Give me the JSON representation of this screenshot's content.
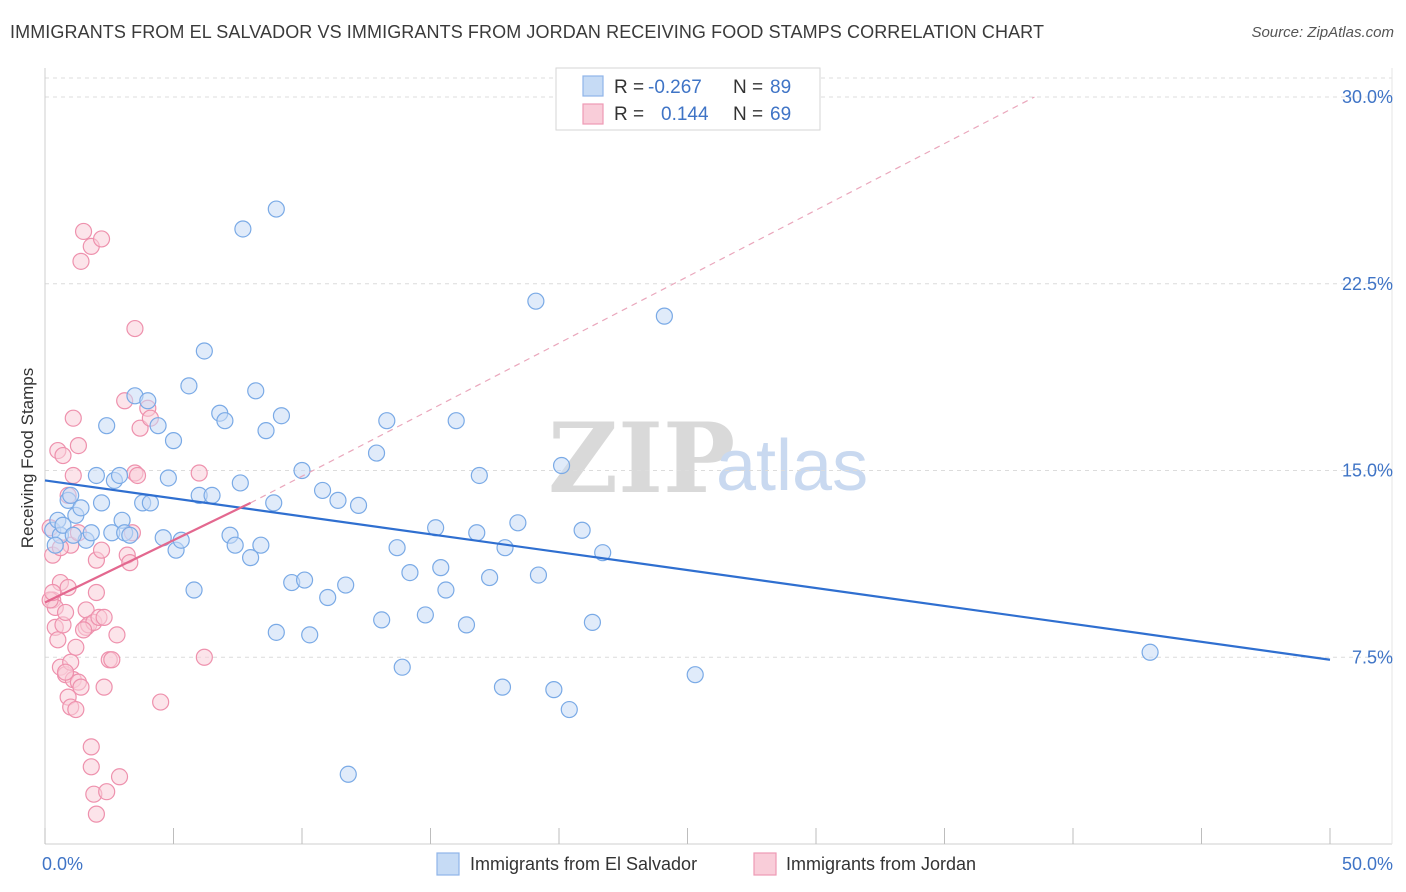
{
  "title": "IMMIGRANTS FROM EL SALVADOR VS IMMIGRANTS FROM JORDAN RECEIVING FOOD STAMPS CORRELATION CHART",
  "source": "Source: ZipAtlas.com",
  "watermark": {
    "zip": "ZIP",
    "atlas": "atlas"
  },
  "legend_top": [
    {
      "r_label": "R = ",
      "r_value": "-0.267",
      "n_label": "N = ",
      "n_value": "89",
      "color": "#a8c8f0"
    },
    {
      "r_label": "R = ",
      "r_value": "0.144",
      "n_label": "N = ",
      "n_value": "69",
      "color": "#f5b8cb"
    }
  ],
  "chart_data": {
    "type": "scatter",
    "title": "IMMIGRANTS FROM EL SALVADOR VS IMMIGRANTS FROM JORDAN RECEIVING FOOD STAMPS CORRELATION CHART",
    "xlabel": "",
    "ylabel": "Receiving Food Stamps",
    "xlim": [
      0,
      50
    ],
    "ylim": [
      0,
      30.5
    ],
    "x_tick_labels": [
      "0.0%",
      "50.0%"
    ],
    "y_ticks": [
      7.5,
      15.0,
      22.5,
      30.0
    ],
    "y_tick_labels": [
      "7.5%",
      "15.0%",
      "22.5%",
      "30.0%"
    ],
    "grid": true,
    "legend": "bottom-center",
    "series": [
      {
        "name": "Immigrants from El Salvador",
        "color": "#7aaae6",
        "fill": "#c6dbf5",
        "trend": {
          "x": [
            0,
            50
          ],
          "y": [
            14.6,
            7.4
          ]
        },
        "points": [
          [
            0.3,
            12.6
          ],
          [
            0.5,
            13.0
          ],
          [
            0.6,
            12.4
          ],
          [
            0.7,
            12.8
          ],
          [
            0.9,
            13.8
          ],
          [
            1.0,
            14.0
          ],
          [
            1.2,
            13.2
          ],
          [
            1.4,
            13.5
          ],
          [
            1.6,
            12.2
          ],
          [
            1.8,
            12.5
          ],
          [
            2.0,
            14.8
          ],
          [
            2.2,
            13.7
          ],
          [
            2.4,
            16.8
          ],
          [
            2.6,
            12.5
          ],
          [
            2.7,
            14.6
          ],
          [
            3.0,
            13.0
          ],
          [
            3.1,
            12.5
          ],
          [
            3.3,
            12.4
          ],
          [
            3.5,
            18.0
          ],
          [
            3.8,
            13.7
          ],
          [
            4.0,
            17.8
          ],
          [
            4.1,
            13.7
          ],
          [
            4.4,
            16.8
          ],
          [
            4.6,
            12.3
          ],
          [
            4.8,
            14.7
          ],
          [
            5.0,
            16.2
          ],
          [
            5.1,
            11.8
          ],
          [
            5.3,
            12.2
          ],
          [
            5.6,
            18.4
          ],
          [
            5.8,
            10.2
          ],
          [
            6.0,
            14.0
          ],
          [
            6.2,
            19.8
          ],
          [
            6.5,
            14.0
          ],
          [
            6.8,
            17.3
          ],
          [
            7.0,
            17.0
          ],
          [
            7.2,
            12.4
          ],
          [
            7.4,
            12.0
          ],
          [
            7.6,
            14.5
          ],
          [
            8.0,
            11.5
          ],
          [
            8.2,
            18.2
          ],
          [
            8.4,
            12.0
          ],
          [
            8.6,
            16.6
          ],
          [
            8.9,
            13.7
          ],
          [
            9.0,
            8.5
          ],
          [
            9.2,
            17.2
          ],
          [
            9.6,
            10.5
          ],
          [
            10.0,
            15.0
          ],
          [
            10.1,
            10.6
          ],
          [
            10.3,
            8.4
          ],
          [
            10.8,
            14.2
          ],
          [
            11.0,
            9.9
          ],
          [
            11.4,
            13.8
          ],
          [
            11.7,
            10.4
          ],
          [
            12.2,
            13.6
          ],
          [
            12.9,
            15.7
          ],
          [
            13.1,
            9.0
          ],
          [
            13.3,
            17.0
          ],
          [
            13.7,
            11.9
          ],
          [
            13.9,
            7.1
          ],
          [
            14.2,
            10.9
          ],
          [
            14.8,
            9.2
          ],
          [
            15.2,
            12.7
          ],
          [
            15.4,
            11.1
          ],
          [
            15.6,
            10.2
          ],
          [
            16.0,
            17.0
          ],
          [
            16.4,
            8.8
          ],
          [
            16.8,
            12.5
          ],
          [
            16.9,
            14.8
          ],
          [
            17.3,
            10.7
          ],
          [
            17.8,
            6.3
          ],
          [
            17.9,
            11.9
          ],
          [
            18.4,
            12.9
          ],
          [
            19.1,
            21.8
          ],
          [
            19.2,
            10.8
          ],
          [
            19.8,
            6.2
          ],
          [
            20.1,
            15.2
          ],
          [
            20.4,
            5.4
          ],
          [
            20.9,
            12.6
          ],
          [
            21.3,
            8.9
          ],
          [
            21.7,
            11.7
          ],
          [
            9.0,
            25.5
          ],
          [
            7.7,
            24.7
          ],
          [
            24.1,
            21.2
          ],
          [
            25.3,
            6.8
          ],
          [
            43.0,
            7.7
          ],
          [
            11.8,
            2.8
          ],
          [
            0.4,
            12.0
          ],
          [
            1.1,
            12.4
          ],
          [
            2.9,
            14.8
          ]
        ]
      },
      {
        "name": "Immigrants from Jordan",
        "color": "#ee91ad",
        "fill": "#f9cdd9",
        "trend": {
          "x": [
            0,
            8
          ],
          "y": [
            9.7,
            13.7
          ]
        },
        "trend_extended": {
          "x": [
            8,
            38.5
          ],
          "y": [
            13.7,
            30.0
          ]
        },
        "points": [
          [
            0.2,
            12.7
          ],
          [
            0.3,
            11.6
          ],
          [
            0.3,
            9.8
          ],
          [
            0.4,
            9.5
          ],
          [
            0.4,
            8.7
          ],
          [
            0.5,
            15.8
          ],
          [
            0.5,
            8.2
          ],
          [
            0.6,
            7.1
          ],
          [
            0.6,
            10.5
          ],
          [
            0.7,
            15.6
          ],
          [
            0.7,
            8.8
          ],
          [
            0.8,
            9.3
          ],
          [
            0.8,
            6.8
          ],
          [
            0.9,
            10.3
          ],
          [
            0.9,
            5.9
          ],
          [
            1.0,
            12.0
          ],
          [
            1.0,
            7.3
          ],
          [
            1.0,
            5.5
          ],
          [
            1.1,
            17.1
          ],
          [
            1.1,
            14.8
          ],
          [
            1.1,
            6.6
          ],
          [
            1.2,
            5.4
          ],
          [
            1.3,
            16.0
          ],
          [
            1.3,
            12.5
          ],
          [
            1.3,
            6.5
          ],
          [
            1.4,
            6.3
          ],
          [
            1.4,
            23.4
          ],
          [
            1.5,
            24.6
          ],
          [
            1.6,
            9.4
          ],
          [
            1.6,
            8.7
          ],
          [
            1.7,
            8.8
          ],
          [
            1.8,
            24.0
          ],
          [
            1.8,
            3.9
          ],
          [
            1.8,
            3.1
          ],
          [
            1.9,
            2.0
          ],
          [
            1.9,
            8.9
          ],
          [
            2.0,
            11.4
          ],
          [
            2.0,
            10.1
          ],
          [
            2.0,
            1.2
          ],
          [
            2.1,
            9.1
          ],
          [
            2.2,
            24.3
          ],
          [
            2.3,
            9.1
          ],
          [
            2.3,
            6.3
          ],
          [
            2.4,
            2.1
          ],
          [
            2.5,
            7.4
          ],
          [
            2.6,
            7.4
          ],
          [
            2.8,
            8.4
          ],
          [
            2.9,
            2.7
          ],
          [
            3.1,
            17.8
          ],
          [
            3.2,
            11.6
          ],
          [
            3.3,
            11.3
          ],
          [
            3.4,
            12.5
          ],
          [
            3.5,
            14.9
          ],
          [
            3.5,
            20.7
          ],
          [
            3.6,
            14.8
          ],
          [
            3.7,
            16.7
          ],
          [
            4.0,
            17.5
          ],
          [
            4.1,
            17.1
          ],
          [
            4.5,
            5.7
          ],
          [
            6.0,
            14.9
          ],
          [
            6.2,
            7.5
          ],
          [
            0.2,
            9.8
          ],
          [
            0.3,
            10.1
          ],
          [
            0.6,
            11.9
          ],
          [
            0.9,
            14.0
          ],
          [
            1.5,
            8.6
          ],
          [
            2.2,
            11.8
          ],
          [
            1.2,
            7.9
          ],
          [
            0.8,
            6.9
          ]
        ]
      }
    ]
  },
  "bottom_legend": [
    {
      "label": "Immigrants from El Salvador"
    },
    {
      "label": "Immigrants from Jordan"
    }
  ]
}
